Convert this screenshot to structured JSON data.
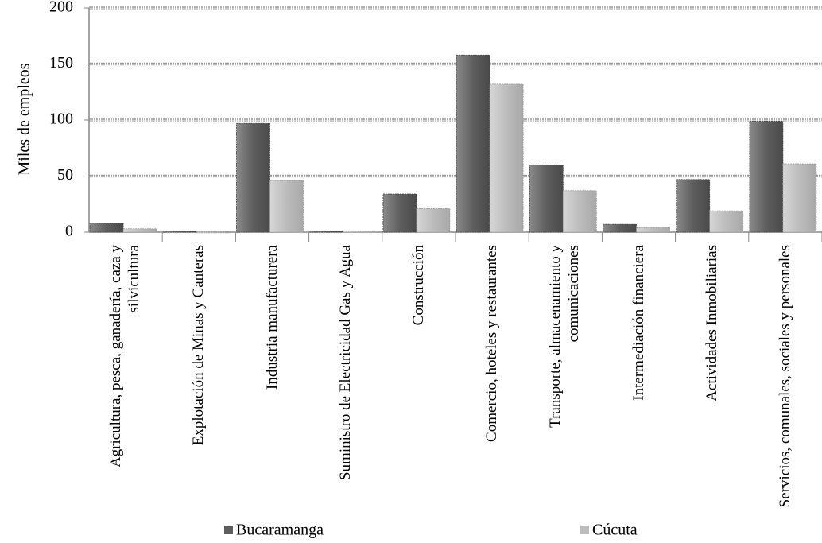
{
  "chart_data": {
    "type": "bar",
    "y_label": "Miles de empleos",
    "categories": [
      "Agricultura, pesca, ganadería, caza y silvicultura",
      "Explotación de Minas y Canteras",
      "Industria manufacturera",
      "Suministro de Electricidad Gas y Agua",
      "Construcción",
      "Comercio, hoteles y restaurantes",
      "Transporte, almacenamiento y comunicaciones",
      "Intermediación financiera",
      "Actividades Inmobiliarias",
      "Servicios, comunales, sociales y personales"
    ],
    "series": [
      {
        "name": "Bucaramanga",
        "color": "#5e5e5e",
        "values": [
          8,
          1,
          97,
          1,
          34,
          158,
          60,
          7,
          47,
          99
        ]
      },
      {
        "name": "Cúcuta",
        "color": "#bcbcbc",
        "values": [
          3,
          0.5,
          46,
          1,
          21,
          132,
          37,
          4,
          19,
          61
        ]
      }
    ],
    "ylim": [
      0,
      200
    ],
    "yticks": [
      0,
      50,
      100,
      150,
      200
    ],
    "grid": true
  }
}
